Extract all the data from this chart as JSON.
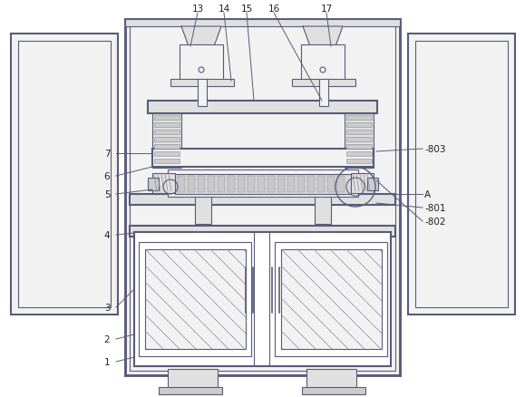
{
  "bg_color": "#ffffff",
  "lc": "#5a5a7a",
  "lc2": "#888899",
  "lw_main": 1.5,
  "lw_thin": 0.8,
  "lw_xtra": 0.5,
  "figsize": [
    5.79,
    4.39
  ],
  "dpi": 100,
  "label_fs": 7.5,
  "label_color": "#222222"
}
